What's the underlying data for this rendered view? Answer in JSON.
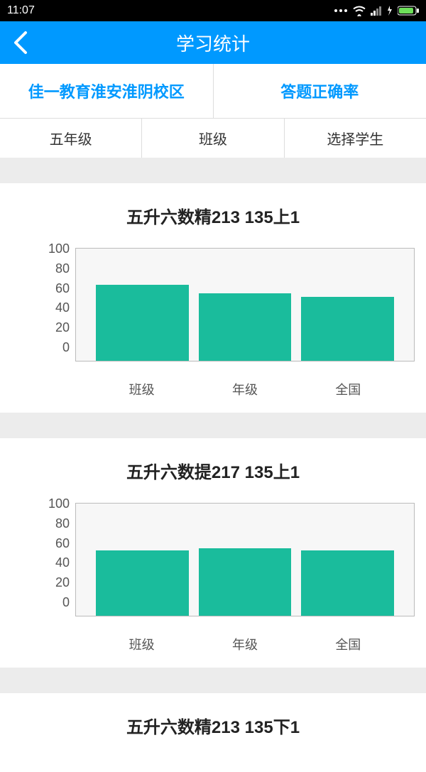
{
  "status": {
    "time": "11:07"
  },
  "header": {
    "title": "学习统计"
  },
  "topTabs": {
    "left": "佳一教育淮安淮阴校区",
    "right": "答题正确率"
  },
  "filters": {
    "grade": "五年级",
    "class": "班级",
    "student": "选择学生"
  },
  "chartStyle": {
    "type": "bar",
    "bar_color": "#1abc9c",
    "plot_bg": "#f7f7f7",
    "plot_border": "#bbbbbb",
    "ylim": [
      0,
      100
    ],
    "ytick_step": 20,
    "yticks": [
      "100",
      "80",
      "60",
      "40",
      "20",
      "0"
    ],
    "legend_label": "正确率",
    "categories": [
      "班级",
      "年级",
      "全国"
    ]
  },
  "cards": [
    {
      "title": "五升六数精213 135上1",
      "values": [
        68,
        60,
        57
      ]
    },
    {
      "title": "五升六数提217 135上1",
      "values": [
        58,
        60,
        58
      ]
    },
    {
      "title": "五升六数精213 135下1",
      "values": []
    }
  ]
}
